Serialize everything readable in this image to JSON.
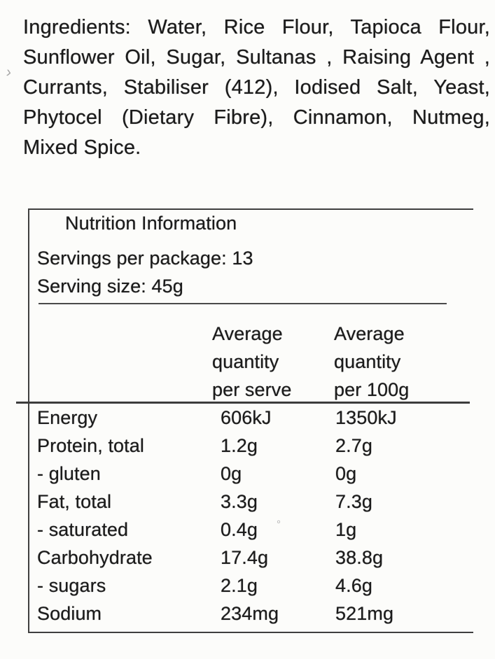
{
  "page": {
    "background_color": "#fcfcfa",
    "text_color": "#1b1b1b",
    "border_color": "#3f3f3f"
  },
  "ingredients": {
    "lines": [
      "Ingredients: Water, Rice Flour, Tapioca Flour,",
      "Sunflower Oil, Sugar, Sultanas , Raising Agent ,",
      "Currants, Stabiliser (412), Iodised Salt, Yeast,",
      "Phytocel (Dietary Fibre), Cinnamon, Nutmeg,",
      "Mixed Spice."
    ],
    "full_text": "Ingredients: Water, Rice Flour, Tapioca Flour, Sunflower Oil, Sugar, Sultanas , Raising Agent , Currants, Stabiliser (412), Iodised Salt, Yeast, Phytocel (Dietary Fibre), Cinnamon, Nutmeg, Mixed Spice."
  },
  "scan_artifacts": {
    "left_mark": "›",
    "mid_mark": "°"
  },
  "nutrition_panel": {
    "title": "Nutrition Information",
    "servings_per_package": "Servings per package: 13",
    "serving_size": "Serving size: 45g",
    "columns": [
      {
        "label": "Average quantity per serve",
        "lines": "Average\nquantity\nper serve"
      },
      {
        "label": "Average quantity per 100g",
        "lines": "Average\nquantity\nper 100g"
      }
    ],
    "rows": [
      {
        "nutrient": "Energy",
        "per_serve": "606kJ",
        "per_100g": "1350kJ"
      },
      {
        "nutrient": "Protein, total",
        "per_serve": "1.2g",
        "per_100g": "2.7g"
      },
      {
        "nutrient": "- gluten",
        "per_serve": "0g",
        "per_100g": "0g"
      },
      {
        "nutrient": "Fat, total",
        "per_serve": "3.3g",
        "per_100g": "7.3g"
      },
      {
        "nutrient": "- saturated",
        "per_serve": "0.4g",
        "per_100g": "1g"
      },
      {
        "nutrient": "Carbohydrate",
        "per_serve": "17.4g",
        "per_100g": "38.8g"
      },
      {
        "nutrient": "- sugars",
        "per_serve": "2.1g",
        "per_100g": "4.6g"
      },
      {
        "nutrient": "Sodium",
        "per_serve": "234mg",
        "per_100g": "521mg"
      }
    ]
  }
}
